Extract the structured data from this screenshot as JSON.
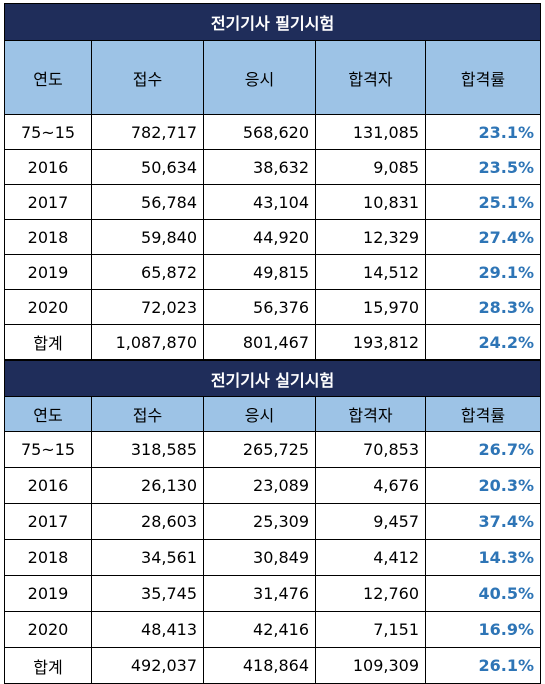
{
  "columns": [
    "연도",
    "접수",
    "응시",
    "합격자",
    "합격률"
  ],
  "tables": [
    {
      "title": "전기기사 필기시험",
      "rows": [
        [
          "75~15",
          "782,717",
          "568,620",
          "131,085",
          "23.1%"
        ],
        [
          "2016",
          "50,634",
          "38,632",
          "9,085",
          "23.5%"
        ],
        [
          "2017",
          "56,784",
          "43,104",
          "10,831",
          "25.1%"
        ],
        [
          "2018",
          "59,840",
          "44,920",
          "12,329",
          "27.4%"
        ],
        [
          "2019",
          "65,872",
          "49,815",
          "14,512",
          "29.1%"
        ],
        [
          "2020",
          "72,023",
          "56,376",
          "15,970",
          "28.3%"
        ],
        [
          "합계",
          "1,087,870",
          "801,467",
          "193,812",
          "24.2%"
        ]
      ]
    },
    {
      "title": "전기기사 실기시험",
      "rows": [
        [
          "75~15",
          "318,585",
          "265,725",
          "70,853",
          "26.7%"
        ],
        [
          "2016",
          "26,130",
          "23,089",
          "4,676",
          "20.3%"
        ],
        [
          "2017",
          "28,603",
          "25,309",
          "9,457",
          "37.4%"
        ],
        [
          "2018",
          "34,561",
          "30,849",
          "4,412",
          "14.3%"
        ],
        [
          "2019",
          "35,745",
          "31,476",
          "12,760",
          "40.5%"
        ],
        [
          "2020",
          "48,413",
          "42,416",
          "7,151",
          "16.9%"
        ],
        [
          "합계",
          "492,037",
          "418,864",
          "109,309",
          "26.1%"
        ]
      ]
    }
  ]
}
